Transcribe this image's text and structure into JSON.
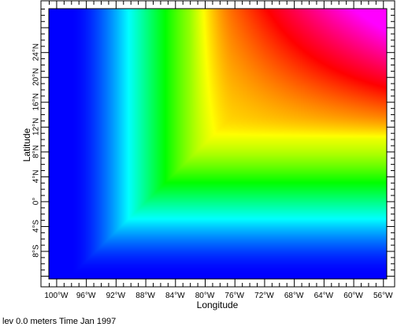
{
  "chart_data": {
    "type": "heatmap",
    "xlabel": "Longitude",
    "ylabel": "Latitude",
    "xlim": [
      -101,
      -55.5
    ],
    "ylim": [
      -12.5,
      31
    ],
    "x_ticks": [
      {
        "value": -100,
        "label": "100°W"
      },
      {
        "value": -96,
        "label": "96°W"
      },
      {
        "value": -92,
        "label": "92°W"
      },
      {
        "value": -88,
        "label": "88°W"
      },
      {
        "value": -84,
        "label": "84°W"
      },
      {
        "value": -80,
        "label": "80°W"
      },
      {
        "value": -76,
        "label": "76°W"
      },
      {
        "value": -72,
        "label": "72°W"
      },
      {
        "value": -68,
        "label": "68°W"
      },
      {
        "value": -64,
        "label": "64°W"
      },
      {
        "value": -60,
        "label": "60°W"
      },
      {
        "value": -56,
        "label": "56°W"
      }
    ],
    "y_ticks": [
      {
        "value": -8,
        "label": "8°S"
      },
      {
        "value": -4,
        "label": "4°S"
      },
      {
        "value": 0,
        "label": "0°"
      },
      {
        "value": 4,
        "label": "4°N"
      },
      {
        "value": 8,
        "label": "8°N"
      },
      {
        "value": 12,
        "label": "12°N"
      },
      {
        "value": 16,
        "label": "16°N"
      },
      {
        "value": 20,
        "label": "20°N"
      },
      {
        "value": 24,
        "label": "24°N"
      }
    ],
    "colormap": [
      "#0000ff",
      "#00ffff",
      "#00ff00",
      "#ffff00",
      "#ff0000",
      "#ff00ff"
    ],
    "grid": false,
    "legend": "none"
  },
  "footer": {
    "text": "lev 0.0 meters Time Jan 1997"
  }
}
